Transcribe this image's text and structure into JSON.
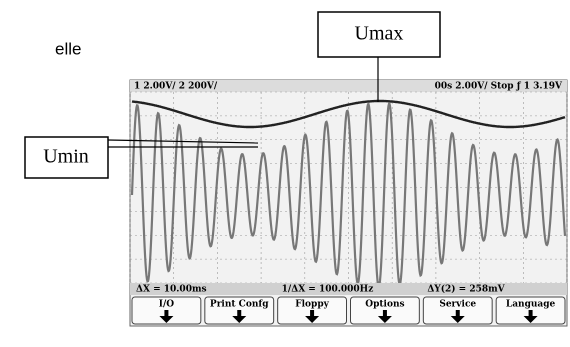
{
  "page_text": "elle",
  "callouts": {
    "umax": "Umax",
    "umin": "Umin"
  },
  "scope": {
    "status_left": "1 2.00V/ 2 200V/",
    "status_right": "00s 2.00V/ Stop ƒ 1 3.19V",
    "measurements": [
      "ΔX = 10.00ms",
      "1/ΔX = 100.000Hz",
      "ΔY(2) = 258mV"
    ],
    "softkeys": [
      "I/O",
      "Print Confg",
      "Floppy",
      "Options",
      "Service",
      "Language"
    ]
  }
}
